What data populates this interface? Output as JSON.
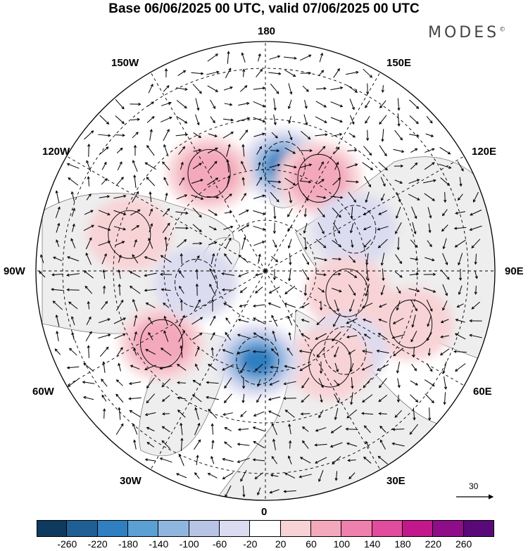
{
  "title": "Base 06/06/2025 00 UTC, valid 07/06/2025 00 UTC",
  "brand": "MODES",
  "brand_mark": "©",
  "longitude_labels": {
    "top": "180",
    "bottom": "0",
    "left": "90W",
    "right": "90E",
    "upper_left_1": "150W",
    "upper_left_2": "120W",
    "upper_right_1": "150E",
    "upper_right_2": "120E",
    "lower_left_1": "60W",
    "lower_left_2": "30W",
    "lower_right_1": "60E",
    "lower_right_2": "30E"
  },
  "reference_vector": {
    "label": "30",
    "icon": "arrow-right-icon"
  },
  "colorbar": {
    "colors": [
      "#0d3a5e",
      "#1f5f93",
      "#2f7fc1",
      "#5aa0d3",
      "#8fb6df",
      "#b7c4e4",
      "#dcdcf0",
      "#ffffff",
      "#f8d3d6",
      "#f3a9bb",
      "#ef7fac",
      "#e24c9d",
      "#c3188c",
      "#8f0d88",
      "#5a0a78"
    ],
    "ticks": [
      "-260",
      "-220",
      "-180",
      "-140",
      "-100",
      "-60",
      "-20",
      "20",
      "60",
      "100",
      "140",
      "180",
      "220",
      "260"
    ]
  },
  "anomaly_features": [
    {
      "type": "negative",
      "lon": 170,
      "lat": 52,
      "strength": 3
    },
    {
      "type": "positive",
      "lon": -150,
      "lat": 50,
      "strength": 2
    },
    {
      "type": "positive",
      "lon": 150,
      "lat": 52,
      "strength": 2
    },
    {
      "type": "negative",
      "lon": 115,
      "lat": 55,
      "strength": 1
    },
    {
      "type": "positive",
      "lon": 75,
      "lat": 60,
      "strength": 1
    },
    {
      "type": "positive",
      "lon": 70,
      "lat": 35,
      "strength": 1
    },
    {
      "type": "negative",
      "lon": 45,
      "lat": 50,
      "strength": 1
    },
    {
      "type": "positive",
      "lon": 35,
      "lat": 50,
      "strength": 1
    },
    {
      "type": "negative",
      "lon": -5,
      "lat": 58,
      "strength": 3
    },
    {
      "type": "positive",
      "lon": -55,
      "lat": 45,
      "strength": 2
    },
    {
      "type": "negative",
      "lon": -80,
      "lat": 65,
      "strength": 1
    },
    {
      "type": "positive",
      "lon": -105,
      "lat": 40,
      "strength": 1
    }
  ]
}
